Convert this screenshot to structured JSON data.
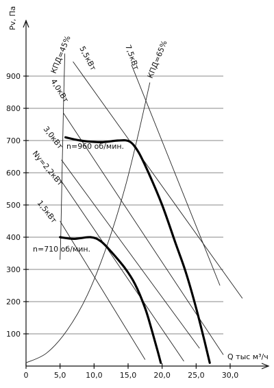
{
  "chart_data": {
    "type": "line",
    "ylabel": "Pv, Па",
    "xlabel": "Q тыс м³/ч",
    "xlim": [
      0,
      30
    ],
    "ylim": [
      0,
      1000
    ],
    "x_ticks": [
      0,
      5,
      10,
      15,
      20,
      25,
      30
    ],
    "x_tick_labels": [
      "0",
      "5,0",
      "10,0",
      "15,0",
      "20,0",
      "25,0",
      "30,0"
    ],
    "y_ticks": [
      100,
      200,
      300,
      400,
      500,
      600,
      700,
      800,
      900
    ],
    "y_tick_labels": [
      "100",
      "200",
      "300",
      "400",
      "500",
      "600",
      "700",
      "800",
      "900"
    ],
    "grid": "horizontal only",
    "fan_curves": [
      {
        "name": "n=960 об/мин.",
        "points": [
          [
            5.8,
            710
          ],
          [
            8,
            700
          ],
          [
            11,
            695
          ],
          [
            13.5,
            700
          ],
          [
            15.2,
            697
          ],
          [
            16.5,
            665
          ],
          [
            18,
            600
          ],
          [
            20,
            500
          ],
          [
            22,
            380
          ],
          [
            23.5,
            290
          ],
          [
            25,
            180
          ],
          [
            26.2,
            80
          ],
          [
            27.0,
            10
          ]
        ]
      },
      {
        "name": "n=710 об/мин.",
        "points": [
          [
            5.0,
            400
          ],
          [
            7,
            395
          ],
          [
            9.5,
            400
          ],
          [
            11,
            387
          ],
          [
            12.5,
            355
          ],
          [
            14.5,
            305
          ],
          [
            16,
            255
          ],
          [
            17.5,
            180
          ],
          [
            18.5,
            110
          ],
          [
            19.3,
            50
          ],
          [
            19.8,
            10
          ]
        ]
      }
    ],
    "power_lines": [
      {
        "name": "5,5кВт",
        "points": [
          [
            6.9,
            945
          ],
          [
            31.8,
            210
          ]
        ]
      },
      {
        "name": "7,5кВт",
        "points": [
          [
            15.5,
            935
          ],
          [
            28.5,
            250
          ]
        ]
      },
      {
        "name": "4,0кВт",
        "points": [
          [
            5.5,
            785
          ],
          [
            29.0,
            35
          ]
        ]
      },
      {
        "name": "3,0кВт",
        "points": [
          [
            5.2,
            640
          ],
          [
            25.5,
            55
          ]
        ]
      },
      {
        "name": "Ny=2,2кВт",
        "points": [
          [
            5.0,
            580
          ],
          [
            23.2,
            15
          ]
        ]
      },
      {
        "name": "1,5кВт",
        "points": [
          [
            5.0,
            450
          ],
          [
            17.5,
            20
          ]
        ]
      }
    ],
    "efficiency_curves": [
      {
        "name": "КПД=45%",
        "points": [
          [
            5.7,
            970
          ],
          [
            5.5,
            800
          ],
          [
            5.3,
            600
          ],
          [
            5.1,
            400
          ],
          [
            5.0,
            330
          ]
        ]
      },
      {
        "name": "КПД=65%",
        "points": [
          [
            0,
            10
          ],
          [
            3,
            40
          ],
          [
            6,
            110
          ],
          [
            9,
            220
          ],
          [
            12,
            380
          ],
          [
            14.5,
            550
          ],
          [
            16.5,
            720
          ],
          [
            18.2,
            880
          ]
        ]
      }
    ],
    "annotations": [
      "5,5кВт",
      "КПД=45%",
      "4,0кВт",
      "3,0кВт",
      "Ny=2,2кВт",
      "1,5кВт",
      "7,5кВт",
      "КПД=65%",
      "n=960 об/мин.",
      "n=710 об/мин."
    ]
  }
}
